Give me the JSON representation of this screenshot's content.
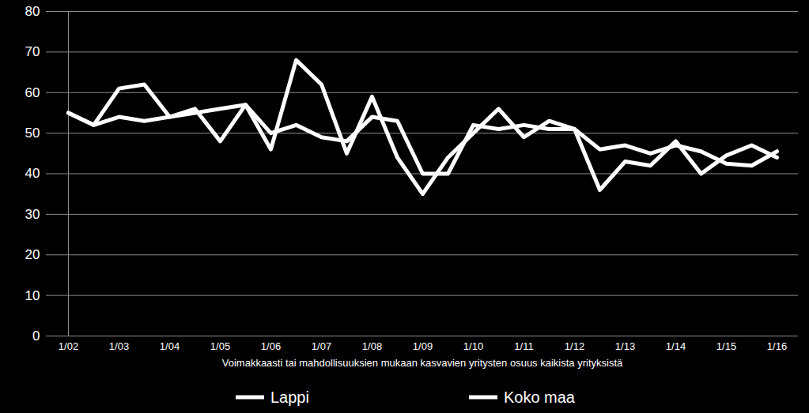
{
  "chart_data": {
    "type": "line",
    "x_label": "Voimakkaasti tai mahdollisuuksien mukaan kasvavien yritysten osuus kaikista yrityksistä",
    "categories": [
      "1/02",
      null,
      "1/03",
      null,
      "1/04",
      null,
      "1/05",
      null,
      "1/06",
      null,
      "1/07",
      null,
      "1/08",
      null,
      "1/09",
      null,
      "1/10",
      null,
      "1/11",
      null,
      "1/12",
      null,
      "1/13",
      null,
      "1/14",
      null,
      "1/15",
      null,
      "1/16"
    ],
    "series": [
      {
        "name": "Lappi",
        "color": "#ffffff",
        "values": [
          55,
          52,
          61,
          62,
          54,
          56,
          48,
          57,
          46,
          68,
          62,
          45,
          59,
          44,
          35,
          44,
          50,
          56,
          49,
          53,
          51,
          36,
          43,
          42,
          48,
          40,
          44.5,
          47,
          44
        ]
      },
      {
        "name": "Koko maa",
        "color": "#ffffff",
        "values": [
          55,
          52,
          54,
          53,
          54,
          55,
          56,
          57,
          50,
          52,
          49,
          48,
          54,
          53,
          40,
          40,
          52,
          51,
          52,
          51,
          51,
          46,
          47,
          45,
          47,
          45.5,
          42.5,
          42,
          45.5
        ]
      }
    ],
    "ylim": [
      0,
      80
    ],
    "yticks": [
      0,
      10,
      20,
      30,
      40,
      50,
      60,
      70,
      80
    ],
    "grid": true,
    "legend": "bottom"
  }
}
